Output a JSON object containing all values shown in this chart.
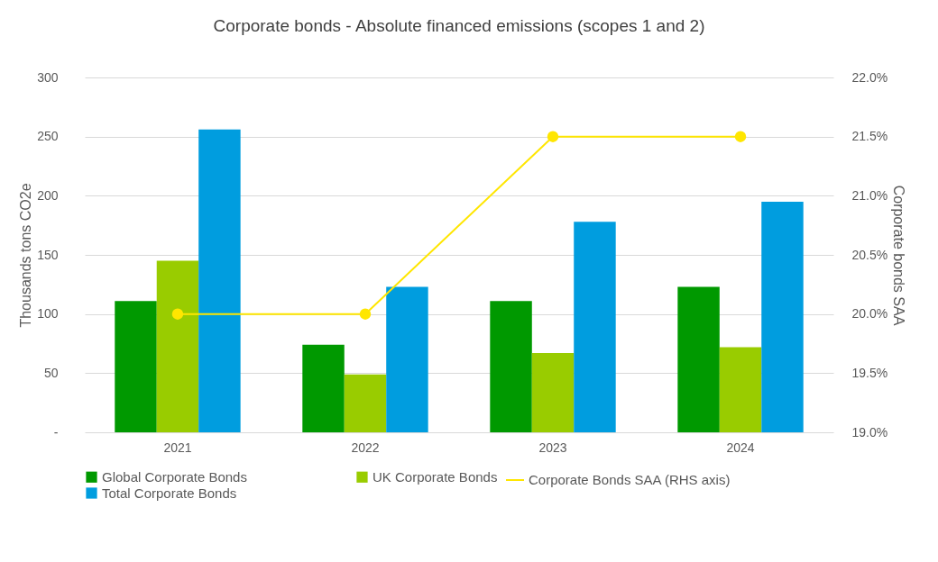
{
  "chart_data": {
    "type": "bar",
    "title": "Corporate bonds - Absolute financed emissions (scopes 1 and 2)",
    "categories": [
      "2021",
      "2022",
      "2023",
      "2024"
    ],
    "series": [
      {
        "name": "Global Corporate Bonds",
        "color": "#009900",
        "values": [
          111,
          74,
          111,
          123
        ]
      },
      {
        "name": "UK Corporate Bonds",
        "color": "#99cc00",
        "values": [
          145,
          49,
          67,
          72
        ]
      },
      {
        "name": "Total Corporate Bonds",
        "color": "#009ddf",
        "values": [
          256,
          123,
          178,
          195
        ]
      },
      {
        "name": "Corporate Bonds SAA (RHS axis)",
        "type": "line",
        "axis": "y2",
        "color": "#ffe600",
        "values": [
          20.0,
          20.0,
          21.5,
          21.5
        ]
      }
    ],
    "ylabel": "Thousands tons CO2e",
    "y2label": "Corporate bonds SAA",
    "ylim": [
      0,
      300
    ],
    "yticks": [
      {
        "value": 0,
        "label": "-"
      },
      50,
      100,
      150,
      200,
      250,
      300
    ],
    "y2lim": [
      19,
      22
    ],
    "y2ticks": [
      {
        "value": 19,
        "label": "19.0%"
      },
      {
        "value": 19.5,
        "label": "19.5%"
      },
      {
        "value": 20,
        "label": "20.0%"
      },
      {
        "value": 20.5,
        "label": "20.5%"
      },
      {
        "value": 21,
        "label": "21.0%"
      },
      {
        "value": 21.5,
        "label": "21.5%"
      },
      {
        "value": 22,
        "label": "22.0%"
      }
    ],
    "grid": "y",
    "legend": "bottom",
    "marker": "circle"
  }
}
